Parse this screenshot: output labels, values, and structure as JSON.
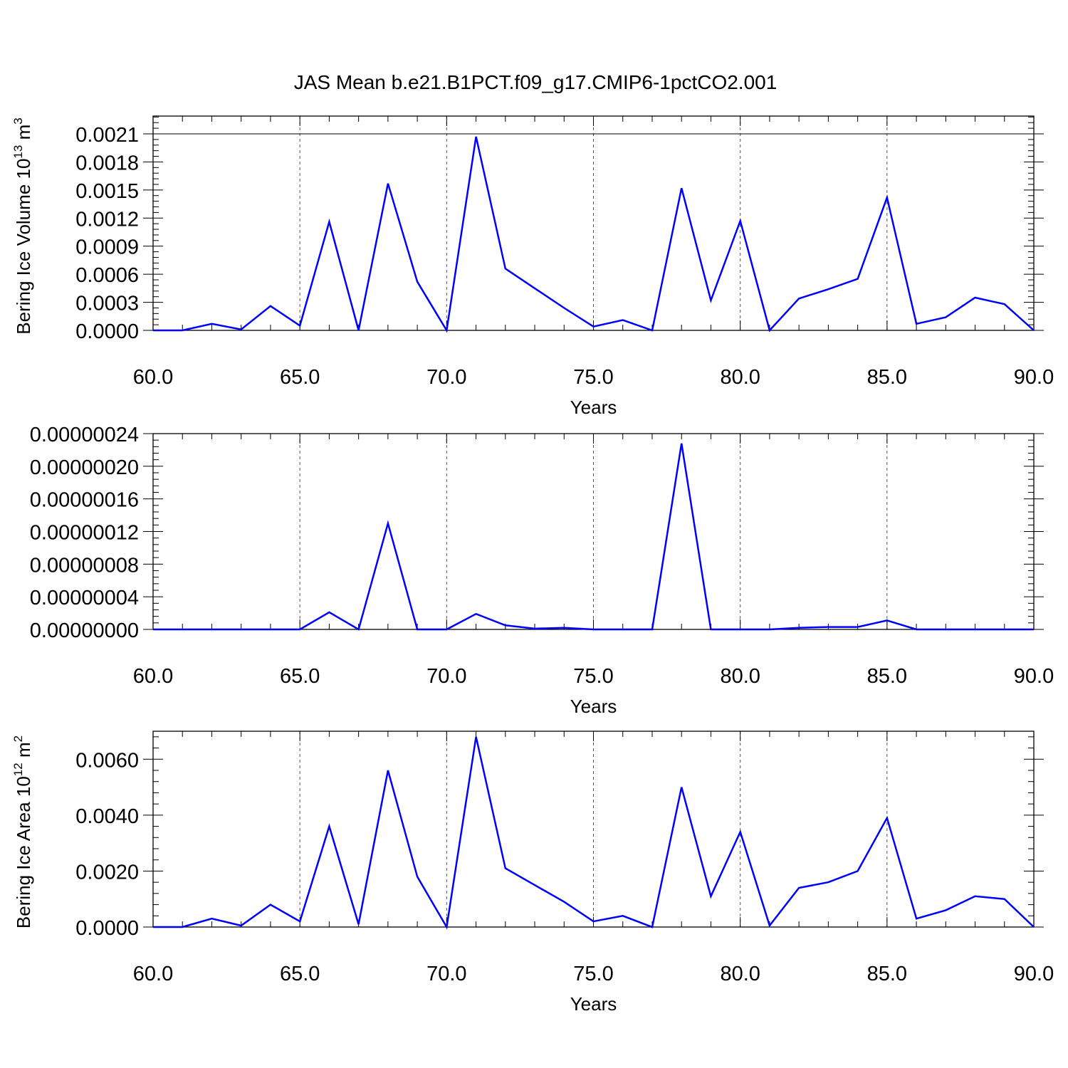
{
  "title": "JAS Mean b.e21.B1PCT.f09_g17.CMIP6-1pctCO2.001",
  "colors": {
    "series": "#0000ff",
    "axes": "#000000",
    "grid": "#555555"
  },
  "chart_data": [
    {
      "type": "line",
      "xlabel": "Years",
      "ylabel": "Bering Ice Volume 10",
      "ylabel_sup1": "13",
      "ylabel_mid": " m",
      "ylabel_sup2": "3",
      "xlim": [
        60,
        90
      ],
      "ylim": [
        0,
        0.0021
      ],
      "grid": "vertical dashed at x major ticks",
      "x_ticks": [
        60,
        65,
        70,
        75,
        80,
        85,
        90
      ],
      "x_tick_labels": [
        "60.0",
        "65.0",
        "70.0",
        "75.0",
        "80.0",
        "85.0",
        "90.0"
      ],
      "y_ticks": [
        0,
        0.0003,
        0.0006,
        0.0009,
        0.0012,
        0.0015,
        0.0018,
        0.0021
      ],
      "y_tick_labels": [
        "0.0000",
        "0.0003",
        "0.0006",
        "0.0009",
        "0.0012",
        "0.0015",
        "0.0018",
        "0.0021"
      ],
      "series": [
        {
          "x": [
            60,
            61,
            62,
            63,
            64,
            65,
            66,
            67,
            68,
            69,
            70,
            71,
            72,
            73,
            74,
            75,
            76,
            77,
            78,
            79,
            80,
            81,
            82,
            83,
            84,
            85,
            86,
            87,
            88,
            89,
            90
          ],
          "values": [
            0,
            0,
            7e-05,
            1e-05,
            0.00026,
            5e-05,
            0.00116,
            0.0,
            0.00157,
            0.00052,
            0,
            0.00207,
            0.00066,
            0.00045,
            0.00024,
            4e-05,
            0.00011,
            0,
            0.00152,
            0.00032,
            0.00117,
            0,
            0.00034,
            0.00044,
            0.00055,
            0.00142,
            7e-05,
            0.00014,
            0.00035,
            0.00028,
            0
          ]
        }
      ]
    },
    {
      "type": "line",
      "xlabel": "Years",
      "ylabel": "",
      "xlim": [
        60,
        90
      ],
      "ylim": [
        0,
        2.4e-07
      ],
      "grid": "vertical dashed at x major ticks",
      "x_ticks": [
        60,
        65,
        70,
        75,
        80,
        85,
        90
      ],
      "x_tick_labels": [
        "60.0",
        "65.0",
        "70.0",
        "75.0",
        "80.0",
        "85.0",
        "90.0"
      ],
      "y_ticks": [
        0,
        4e-08,
        8e-08,
        1.2e-07,
        1.6e-07,
        2e-07,
        2.4e-07
      ],
      "y_tick_labels": [
        "0.00000000",
        "0.00000004",
        "0.00000008",
        "0.00000012",
        "0.00000016",
        "0.00000020",
        "0.00000024"
      ],
      "series": [
        {
          "x": [
            60,
            61,
            62,
            63,
            64,
            65,
            66,
            67,
            68,
            69,
            70,
            71,
            72,
            73,
            74,
            75,
            76,
            77,
            78,
            79,
            80,
            81,
            82,
            83,
            84,
            85,
            86,
            87,
            88,
            89,
            90
          ],
          "values": [
            0,
            0,
            0,
            0,
            0,
            0,
            2.1e-08,
            0,
            1.3e-07,
            0,
            0,
            1.9e-08,
            5e-09,
            1e-09,
            2e-09,
            0,
            0,
            0,
            2.28e-07,
            0,
            0,
            0,
            2e-09,
            3e-09,
            3e-09,
            1.1e-08,
            0,
            0,
            0,
            0,
            0
          ]
        }
      ]
    },
    {
      "type": "line",
      "xlabel": "Years",
      "ylabel": "Bering Ice Area 10",
      "ylabel_sup1": "12",
      "ylabel_mid": " m",
      "ylabel_sup2": "2",
      "xlim": [
        60,
        90
      ],
      "ylim": [
        0,
        0.007
      ],
      "grid": "vertical dashed at x major ticks",
      "x_ticks": [
        60,
        65,
        70,
        75,
        80,
        85,
        90
      ],
      "x_tick_labels": [
        "60.0",
        "65.0",
        "70.0",
        "75.0",
        "80.0",
        "85.0",
        "90.0"
      ],
      "y_ticks": [
        0,
        0.002,
        0.004,
        0.006
      ],
      "y_tick_labels": [
        "0.0000",
        "0.0020",
        "0.0040",
        "0.0060"
      ],
      "series": [
        {
          "x": [
            60,
            61,
            62,
            63,
            64,
            65,
            66,
            67,
            68,
            69,
            70,
            71,
            72,
            73,
            74,
            75,
            76,
            77,
            78,
            79,
            80,
            81,
            82,
            83,
            84,
            85,
            86,
            87,
            88,
            89,
            90
          ],
          "values": [
            0,
            0,
            0.0003,
            5e-05,
            0.0008,
            0.0002,
            0.0036,
            0.0001,
            0.0056,
            0.0018,
            0,
            0.0068,
            0.0021,
            0.0015,
            0.0009,
            0.0002,
            0.0004,
            0,
            0.005,
            0.0011,
            0.0034,
            5e-05,
            0.0014,
            0.0016,
            0.002,
            0.0039,
            0.0003,
            0.0006,
            0.0011,
            0.001,
            0
          ]
        }
      ]
    }
  ]
}
